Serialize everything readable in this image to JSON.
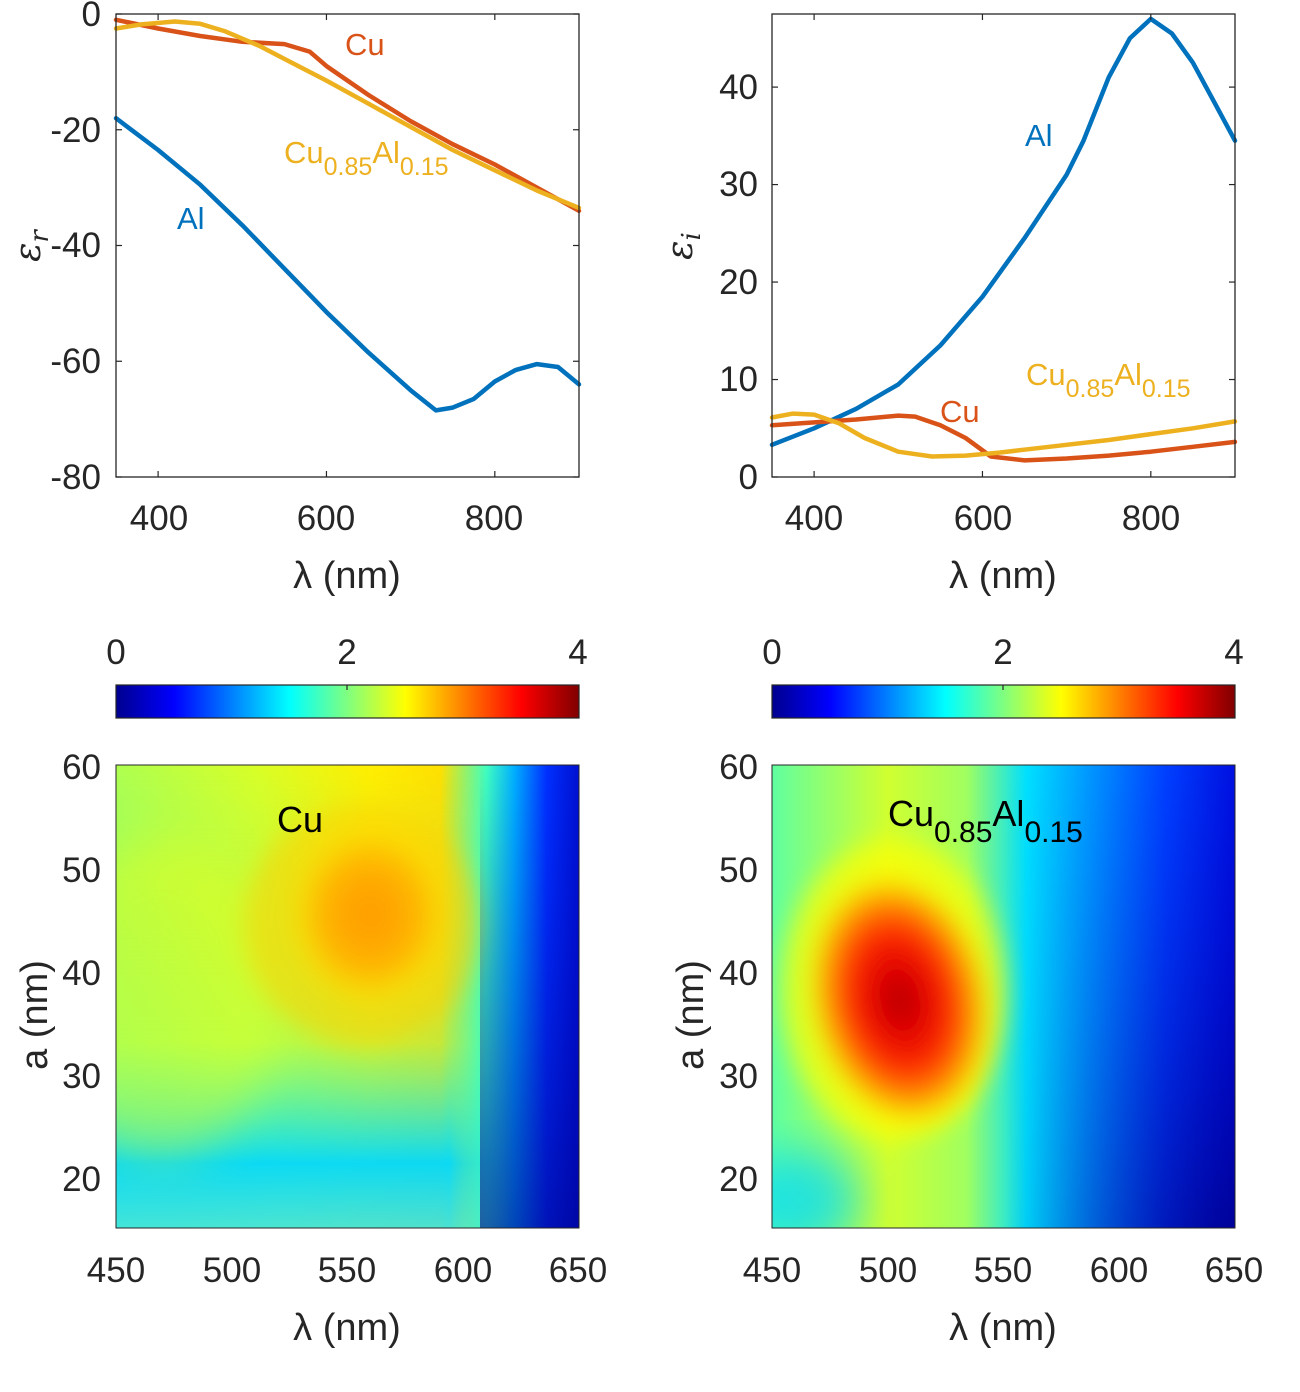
{
  "chart_data": [
    {
      "id": "eps_r",
      "type": "line",
      "ylabel_symbol": "ε",
      "ylabel_sub": "r",
      "xlabel": "λ (nm)",
      "xlim": [
        350,
        900
      ],
      "ylim": [
        -80,
        0
      ],
      "xticks": [
        "400",
        "600",
        "800"
      ],
      "yticks": [
        "0",
        "-20",
        "-40",
        "-60",
        "-80"
      ],
      "series": [
        {
          "name": "Al",
          "color": "#0072BD",
          "x": [
            350,
            400,
            450,
            500,
            550,
            600,
            650,
            700,
            730,
            750,
            775,
            800,
            825,
            850,
            875,
            900
          ],
          "y": [
            -18,
            -23.5,
            -29.5,
            -36.5,
            -44,
            -51.5,
            -58.5,
            -65,
            -68.5,
            -68,
            -66.5,
            -63.5,
            -61.5,
            -60.5,
            -61,
            -64
          ]
        },
        {
          "name": "Cu",
          "color": "#D95319",
          "x": [
            350,
            400,
            450,
            500,
            550,
            580,
            600,
            650,
            700,
            750,
            800,
            850,
            900
          ],
          "y": [
            -1,
            -2.5,
            -3.8,
            -4.8,
            -5.2,
            -6.5,
            -9,
            -14,
            -18.5,
            -22.5,
            -26,
            -30,
            -34
          ]
        },
        {
          "name": "Cu0.85Al0.15",
          "color": "#EDB120",
          "x": [
            350,
            380,
            420,
            450,
            480,
            520,
            560,
            600,
            650,
            700,
            750,
            800,
            850,
            900
          ],
          "y": [
            -2.5,
            -1.8,
            -1.3,
            -1.7,
            -3,
            -5.5,
            -8.5,
            -11.5,
            -15.5,
            -19.5,
            -23.5,
            -27,
            -30.5,
            -33.5
          ]
        }
      ],
      "labels": [
        {
          "series": "Cu",
          "text": "Cu",
          "x": 620,
          "y": -5
        },
        {
          "series": "Cu0.85Al0.15",
          "base1": "Cu",
          "sub1": "0.85",
          "base2": "Al",
          "sub2": "0.15",
          "x": 490,
          "y": -24.5
        },
        {
          "series": "Al",
          "text": "Al",
          "x": 415,
          "y": -36.5
        }
      ]
    },
    {
      "id": "eps_i",
      "type": "line",
      "ylabel_symbol": "ε",
      "ylabel_sub": "i",
      "xlabel": "λ (nm)",
      "xlim": [
        350,
        900
      ],
      "ylim": [
        0,
        47.5
      ],
      "xticks": [
        "400",
        "600",
        "800"
      ],
      "yticks": [
        "0",
        "10",
        "20",
        "30",
        "40"
      ],
      "series": [
        {
          "name": "Al",
          "color": "#0072BD",
          "x": [
            350,
            400,
            450,
            500,
            550,
            600,
            650,
            700,
            720,
            750,
            775,
            800,
            825,
            850,
            875,
            900
          ],
          "y": [
            3.3,
            5,
            7,
            9.5,
            13.5,
            18.5,
            24.5,
            31,
            34.5,
            41,
            45,
            47,
            45.5,
            42.5,
            38.5,
            34.5
          ]
        },
        {
          "name": "Cu",
          "color": "#D95319",
          "x": [
            350,
            400,
            450,
            500,
            520,
            550,
            580,
            610,
            650,
            700,
            750,
            800,
            850,
            900
          ],
          "y": [
            5.3,
            5.6,
            5.9,
            6.3,
            6.2,
            5.3,
            4,
            2.1,
            1.7,
            1.9,
            2.2,
            2.6,
            3.1,
            3.6
          ]
        },
        {
          "name": "Cu0.85Al0.15",
          "color": "#EDB120",
          "x": [
            350,
            375,
            400,
            430,
            460,
            500,
            540,
            580,
            620,
            660,
            700,
            750,
            800,
            850,
            900
          ],
          "y": [
            6.1,
            6.5,
            6.4,
            5.5,
            4,
            2.6,
            2.1,
            2.2,
            2.5,
            2.9,
            3.3,
            3.8,
            4.4,
            5,
            5.7
          ]
        }
      ],
      "labels": [
        {
          "series": "Al",
          "text": "Al",
          "x": 660,
          "y": 35
        },
        {
          "series": "Cu0.85Al0.15",
          "base1": "Cu",
          "sub1": "0.85",
          "base2": "Al",
          "sub2": "0.15",
          "x": 650,
          "y": 9.5
        },
        {
          "series": "Cu",
          "text": "Cu",
          "x": 510,
          "y": 6.3
        }
      ]
    },
    {
      "id": "map_cu",
      "type": "heatmap",
      "title_base": "Cu",
      "xlabel": "λ (nm)",
      "ylabel": "a (nm)",
      "xlim": [
        450,
        650
      ],
      "ylim": [
        15,
        60
      ],
      "xticks": [
        "450",
        "500",
        "550",
        "600",
        "650"
      ],
      "yticks": [
        "20",
        "30",
        "40",
        "50",
        "60"
      ],
      "colorbar": {
        "range": [
          0,
          4
        ],
        "ticks": [
          "0",
          "2",
          "4"
        ],
        "colormap": "jet"
      },
      "description": "Peak value about 2.9 near λ 570 nm, a 44 nm; falls off to below 0.5 beyond 620 nm"
    },
    {
      "id": "map_cual",
      "type": "heatmap",
      "title_base1": "Cu",
      "title_sub1": "0.85",
      "title_base2": "Al",
      "title_sub2": "0.15",
      "xlabel": "λ (nm)",
      "ylabel": "a (nm)",
      "xlim": [
        450,
        650
      ],
      "ylim": [
        15,
        60
      ],
      "xticks": [
        "450",
        "500",
        "550",
        "600",
        "650"
      ],
      "yticks": [
        "20",
        "30",
        "40",
        "50",
        "60"
      ],
      "colorbar": {
        "range": [
          0,
          4
        ],
        "ticks": [
          "0",
          "2",
          "4"
        ],
        "colormap": "jet"
      },
      "description": "Peak value about 3.8 near λ 510 nm, a 34 nm; falls off to below 0.5 beyond 620 nm"
    }
  ]
}
